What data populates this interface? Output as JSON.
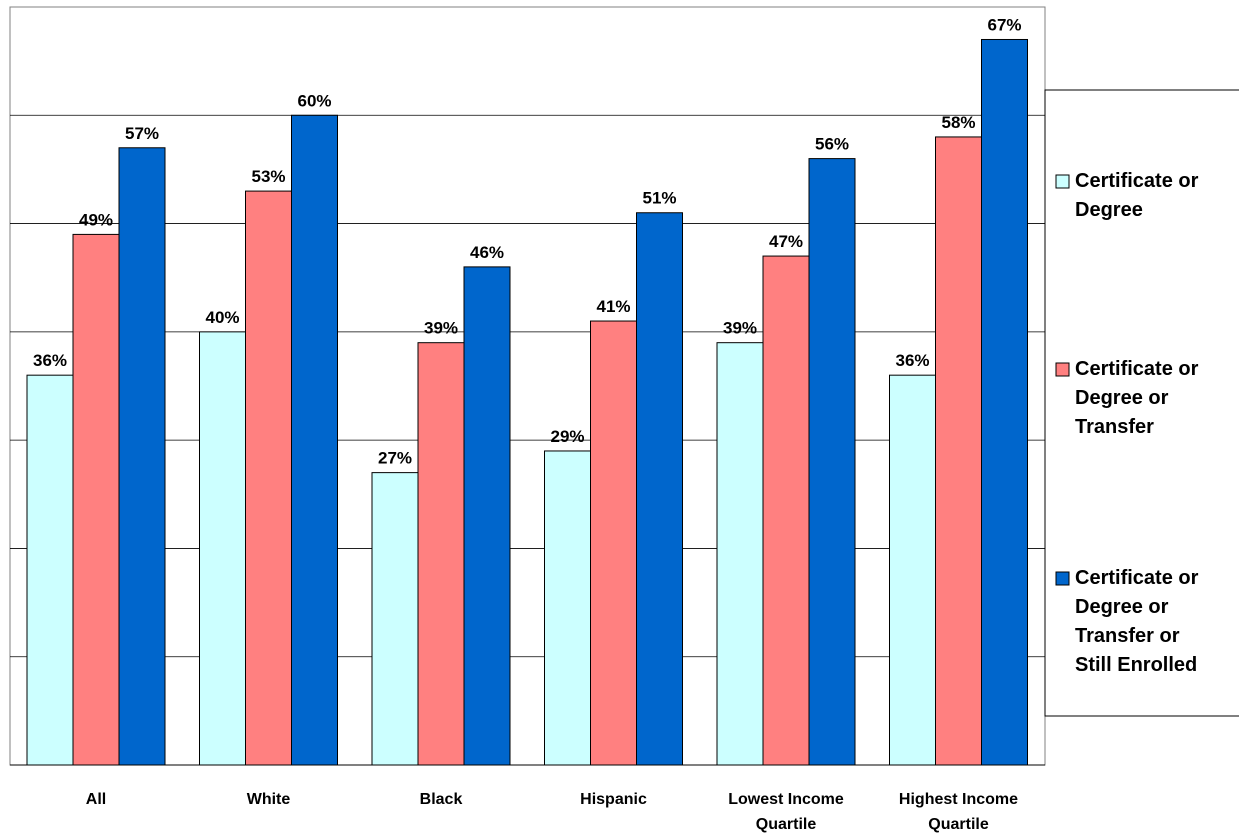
{
  "chart_data": {
    "type": "bar",
    "title": "",
    "xlabel": "",
    "ylabel": "",
    "ylim": [
      0,
      70
    ],
    "grid": true,
    "legend_position": "right",
    "categories": [
      [
        "All"
      ],
      [
        "White"
      ],
      [
        "Black"
      ],
      [
        "Hispanic"
      ],
      [
        "Lowest Income",
        "Quartile"
      ],
      [
        "Highest Income",
        "Quartile"
      ]
    ],
    "series": [
      {
        "name": [
          "Certificate or",
          "Degree"
        ],
        "color": "#CCFFFF",
        "values": [
          36,
          40,
          27,
          29,
          39,
          36
        ],
        "labels": [
          "36%",
          "40%",
          "27%",
          "29%",
          "39%",
          "36%"
        ]
      },
      {
        "name": [
          "Certificate or",
          "Degree or",
          "Transfer"
        ],
        "color": "#FF8080",
        "values": [
          49,
          53,
          39,
          41,
          47,
          58
        ],
        "labels": [
          "49%",
          "53%",
          "39%",
          "41%",
          "47%",
          "58%"
        ]
      },
      {
        "name": [
          "Certificate or",
          "Degree or",
          "Transfer or",
          "Still Enrolled"
        ],
        "color": "#0066CC",
        "values": [
          57,
          60,
          46,
          51,
          56,
          67
        ],
        "labels": [
          "57%",
          "60%",
          "46%",
          "51%",
          "56%",
          "67%"
        ]
      }
    ]
  }
}
